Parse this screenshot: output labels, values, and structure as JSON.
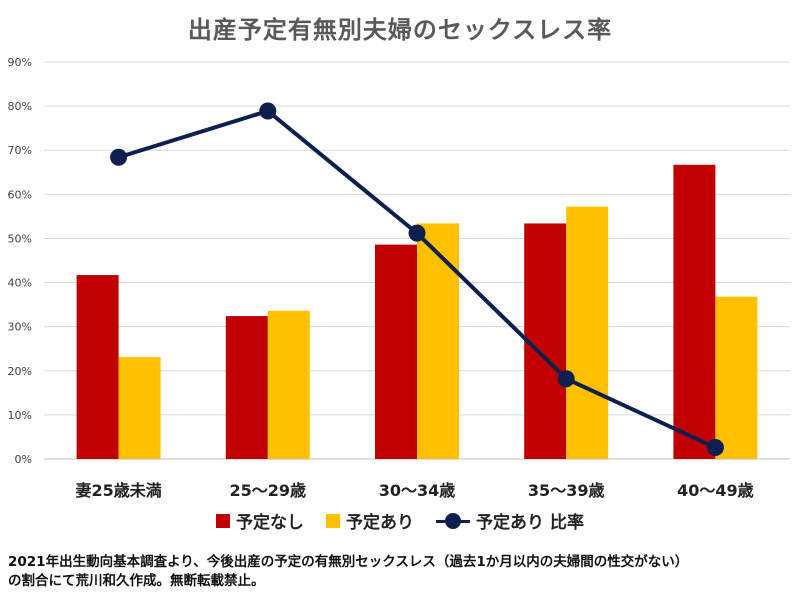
{
  "chart_data": {
    "type": "bar",
    "title": "出産予定有無別夫婦のセックスレス率",
    "categories": [
      "妻25歳未満",
      "25～29歳",
      "30～34歳",
      "35～39歳",
      "40～49歳"
    ],
    "series": [
      {
        "name": "予定なし",
        "type": "bar",
        "color": "#c00000",
        "values": [
          41.7,
          32.4,
          48.6,
          53.4,
          66.7
        ]
      },
      {
        "name": "予定あり",
        "type": "bar",
        "color": "#ffc000",
        "values": [
          23.1,
          33.6,
          53.4,
          57.2,
          36.8
        ]
      },
      {
        "name": "予定あり 比率",
        "type": "line",
        "color": "#0d1f4f",
        "values": [
          68.4,
          78.9,
          51.2,
          18.2,
          2.6
        ]
      }
    ],
    "yticks": [
      "0%",
      "10%",
      "20%",
      "30%",
      "40%",
      "50%",
      "60%",
      "70%",
      "80%",
      "90%"
    ],
    "ylim": [
      0,
      90
    ],
    "grid": true,
    "legend": "bottom"
  },
  "footnote": {
    "line1": "2021年出生動向基本調査より、今後出産の予定の有無別セックスレス（過去1か月以内の夫婦間の性交がない）",
    "line2": "の割合にて荒川和久作成。無断転載禁止。"
  }
}
